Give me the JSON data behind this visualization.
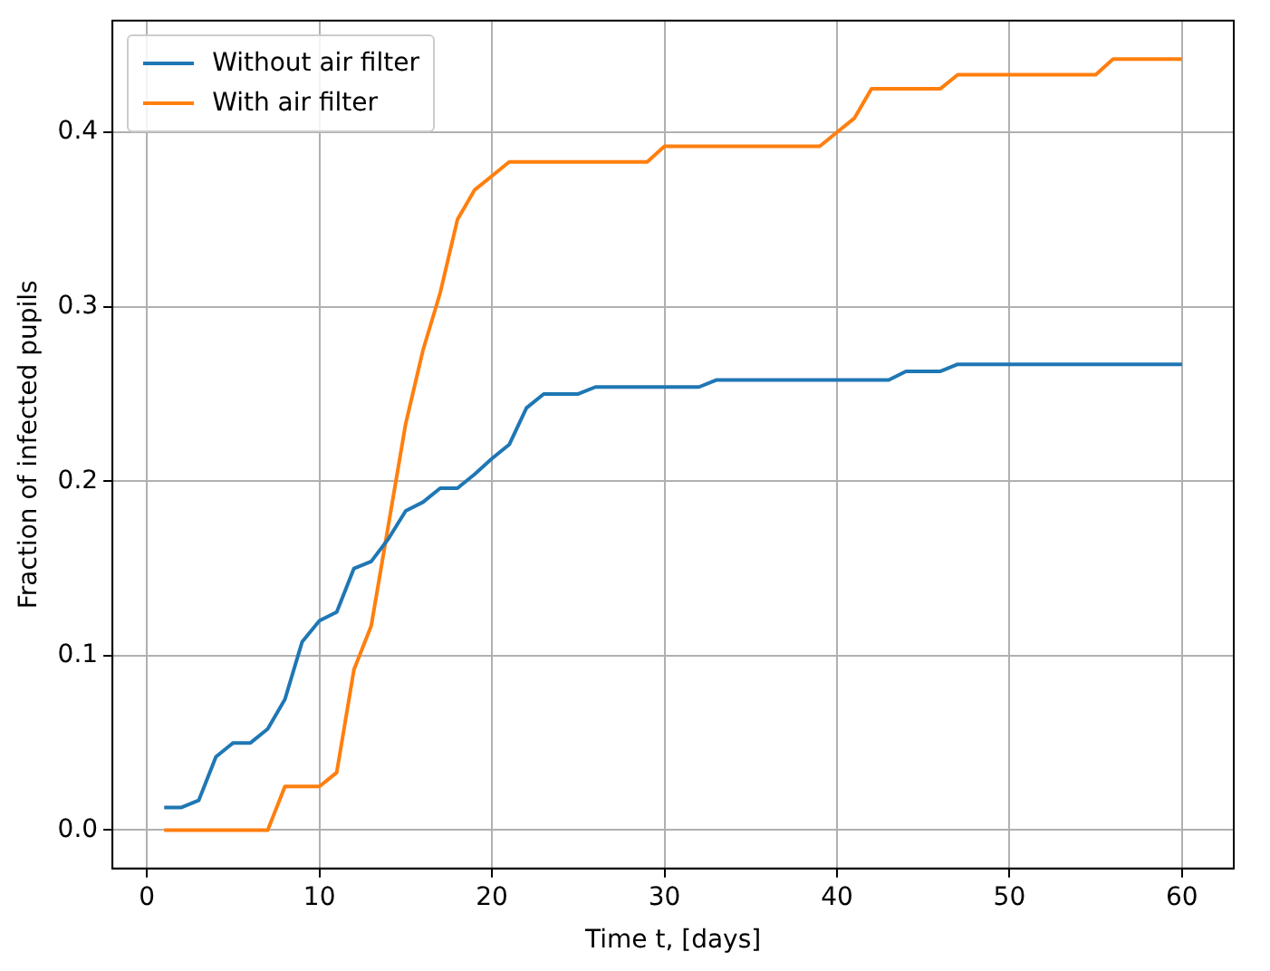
{
  "chart_data": {
    "type": "line",
    "xlabel": "Time t, [days]",
    "ylabel": "Fraction of infected pupils",
    "x": [
      1,
      2,
      3,
      4,
      5,
      6,
      7,
      8,
      9,
      10,
      11,
      12,
      13,
      14,
      15,
      16,
      17,
      18,
      19,
      20,
      21,
      22,
      23,
      24,
      25,
      26,
      27,
      28,
      29,
      30,
      31,
      32,
      33,
      34,
      35,
      36,
      37,
      38,
      39,
      40,
      41,
      42,
      43,
      44,
      45,
      46,
      47,
      48,
      49,
      50,
      51,
      52,
      53,
      54,
      55,
      56,
      57,
      58,
      59,
      60
    ],
    "series": [
      {
        "name": "Without air filter",
        "color": "#1f77b4",
        "values": [
          0.013,
          0.013,
          0.017,
          0.042,
          0.05,
          0.05,
          0.058,
          0.075,
          0.108,
          0.12,
          0.125,
          0.15,
          0.154,
          0.167,
          0.183,
          0.188,
          0.196,
          0.196,
          0.204,
          0.213,
          0.221,
          0.242,
          0.25,
          0.25,
          0.25,
          0.254,
          0.254,
          0.254,
          0.254,
          0.254,
          0.254,
          0.254,
          0.258,
          0.258,
          0.258,
          0.258,
          0.258,
          0.258,
          0.258,
          0.258,
          0.258,
          0.258,
          0.258,
          0.263,
          0.263,
          0.263,
          0.267,
          0.267,
          0.267,
          0.267,
          0.267,
          0.267,
          0.267,
          0.267,
          0.267,
          0.267,
          0.267,
          0.267,
          0.267,
          0.267
        ]
      },
      {
        "name": "With air filter",
        "color": "#ff7f0e",
        "values": [
          0,
          0,
          0,
          0,
          0,
          0,
          0,
          0.025,
          0.025,
          0.025,
          0.033,
          0.092,
          0.117,
          0.175,
          0.233,
          0.275,
          0.308,
          0.35,
          0.367,
          0.375,
          0.383,
          0.383,
          0.383,
          0.383,
          0.383,
          0.383,
          0.383,
          0.383,
          0.383,
          0.392,
          0.392,
          0.392,
          0.392,
          0.392,
          0.392,
          0.392,
          0.392,
          0.392,
          0.392,
          0.4,
          0.408,
          0.425,
          0.425,
          0.425,
          0.425,
          0.425,
          0.433,
          0.433,
          0.433,
          0.433,
          0.433,
          0.433,
          0.433,
          0.433,
          0.433,
          0.442,
          0.442,
          0.442,
          0.442,
          0.442
        ]
      }
    ],
    "xlim": [
      -2,
      63
    ],
    "xticks": [
      0,
      10,
      20,
      30,
      40,
      50,
      60
    ],
    "ylim": [
      -0.022,
      0.464
    ],
    "yticks": [
      {
        "value": 0,
        "label": "0.0"
      },
      {
        "value": 0.1,
        "label": "0.1"
      },
      {
        "value": 0.2,
        "label": "0.2"
      },
      {
        "value": 0.3,
        "label": "0.3"
      },
      {
        "value": 0.4,
        "label": "0.4"
      }
    ],
    "grid": true,
    "legend": "top left",
    "marker": "none",
    "line_style": "solid"
  }
}
